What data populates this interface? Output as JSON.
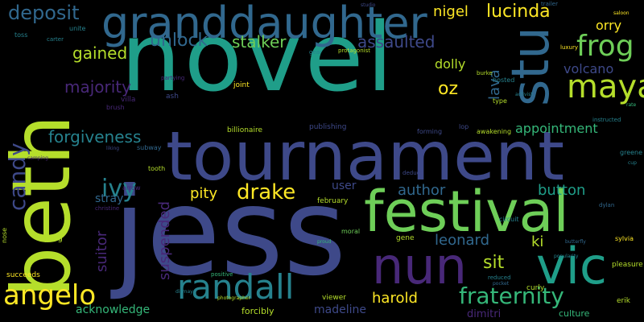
{
  "palette": {
    "yellow": "#fde725",
    "lime": "#b5de2b",
    "green": "#6ece58",
    "teal_green": "#35b779",
    "teal": "#1f9e89",
    "cyan": "#26828e",
    "blue": "#31688e",
    "indigo": "#3e4989",
    "purple": "#482878",
    "deep_purple": "#440154"
  },
  "words": [
    {
      "text": "novel",
      "color": "#1f9e89",
      "vertical": false
    },
    {
      "text": "jess",
      "color": "#3e4989",
      "vertical": false
    },
    {
      "text": "beth",
      "color": "#b5de2b",
      "vertical": true
    },
    {
      "text": "tournament",
      "color": "#3e4989",
      "vertical": false
    },
    {
      "text": "granddaughter",
      "color": "#31688e",
      "vertical": false
    },
    {
      "text": "festival",
      "color": "#6ece58",
      "vertical": false
    },
    {
      "text": "stu",
      "color": "#31688e",
      "vertical": true
    },
    {
      "text": "nun",
      "color": "#482878",
      "vertical": false
    },
    {
      "text": "vic",
      "color": "#1f9e89",
      "vertical": false
    },
    {
      "text": "randall",
      "color": "#26828e",
      "vertical": false
    },
    {
      "text": "angelo",
      "color": "#fde725",
      "vertical": false
    },
    {
      "text": "maya",
      "color": "#b5de2b",
      "vertical": false
    },
    {
      "text": "frog",
      "color": "#6ece58",
      "vertical": false
    },
    {
      "text": "fraternity",
      "color": "#35b779",
      "vertical": false
    },
    {
      "text": "lucinda",
      "color": "#fde725",
      "vertical": false
    },
    {
      "text": "deposit",
      "color": "#31688e",
      "vertical": false
    },
    {
      "text": "candy",
      "color": "#3e4989",
      "vertical": true
    },
    {
      "text": "ivy",
      "color": "#26828e",
      "vertical": false
    },
    {
      "text": "drake",
      "color": "#fde725",
      "vertical": false
    },
    {
      "text": "forgiveness",
      "color": "#26828e",
      "vertical": false
    },
    {
      "text": "unlock",
      "color": "#31688e",
      "vertical": false
    },
    {
      "text": "stalker",
      "color": "#6ece58",
      "vertical": false
    },
    {
      "text": "assaulted",
      "color": "#3e4989",
      "vertical": false
    },
    {
      "text": "gained",
      "color": "#b5de2b",
      "vertical": false
    },
    {
      "text": "majority",
      "color": "#482878",
      "vertical": false
    },
    {
      "text": "volcano",
      "color": "#3e4989",
      "vertical": false
    },
    {
      "text": "nigel",
      "color": "#fde725",
      "vertical": false
    },
    {
      "text": "orry",
      "color": "#fde725",
      "vertical": false
    },
    {
      "text": "dolly",
      "color": "#b5de2b",
      "vertical": false
    },
    {
      "text": "oz",
      "color": "#fde725",
      "vertical": false
    },
    {
      "text": "lava",
      "color": "#31688e",
      "vertical": true
    },
    {
      "text": "appointment",
      "color": "#35b779",
      "vertical": false
    },
    {
      "text": "author",
      "color": "#31688e",
      "vertical": false
    },
    {
      "text": "button",
      "color": "#1f9e89",
      "vertical": false
    },
    {
      "text": "pity",
      "color": "#fde725",
      "vertical": false
    },
    {
      "text": "suitor",
      "color": "#482878",
      "vertical": true
    },
    {
      "text": "suspended",
      "color": "#482878",
      "vertical": true
    },
    {
      "text": "stray",
      "color": "#31688e",
      "vertical": false
    },
    {
      "text": "leonard",
      "color": "#31688e",
      "vertical": false
    },
    {
      "text": "ki",
      "color": "#b5de2b",
      "vertical": false
    },
    {
      "text": "sit",
      "color": "#b5de2b",
      "vertical": false
    },
    {
      "text": "harold",
      "color": "#fde725",
      "vertical": false
    },
    {
      "text": "user",
      "color": "#3e4989",
      "vertical": false
    },
    {
      "text": "acknowledge",
      "color": "#35b779",
      "vertical": false
    },
    {
      "text": "madeline",
      "color": "#3e4989",
      "vertical": false
    },
    {
      "text": "forcibly",
      "color": "#b5de2b",
      "vertical": false
    },
    {
      "text": "dimitri",
      "color": "#482878",
      "vertical": false
    },
    {
      "text": "culture",
      "color": "#35b779",
      "vertical": false
    },
    {
      "text": "erik",
      "color": "#b5de2b",
      "vertical": false
    },
    {
      "text": "sylvia",
      "color": "#fde725",
      "vertical": false
    },
    {
      "text": "pleasure",
      "color": "#b5de2b",
      "vertical": false
    },
    {
      "text": "curly",
      "color": "#b5de2b",
      "vertical": false
    },
    {
      "text": "reduced",
      "color": "#26828e",
      "vertical": false
    },
    {
      "text": "viewer",
      "color": "#b5de2b",
      "vertical": false
    },
    {
      "text": "positive",
      "color": "#35b779",
      "vertical": false
    },
    {
      "text": "succeeds",
      "color": "#fde725",
      "vertical": false
    },
    {
      "text": "jung",
      "color": "#b5de2b",
      "vertical": false
    },
    {
      "text": "february",
      "color": "#b5de2b",
      "vertical": false
    },
    {
      "text": "gene",
      "color": "#b5de2b",
      "vertical": false
    },
    {
      "text": "moral",
      "color": "#6ece58",
      "vertical": false
    },
    {
      "text": "circuit",
      "color": "#26828e",
      "vertical": false
    },
    {
      "text": "billionaire",
      "color": "#b5de2b",
      "vertical": false
    },
    {
      "text": "publishing",
      "color": "#3e4989",
      "vertical": false
    },
    {
      "text": "forming",
      "color": "#3e4989",
      "vertical": false
    },
    {
      "text": "awakening",
      "color": "#b5de2b",
      "vertical": false
    },
    {
      "text": "instructed",
      "color": "#26828e",
      "vertical": false
    },
    {
      "text": "greene",
      "color": "#26828e",
      "vertical": false
    },
    {
      "text": "subway",
      "color": "#31688e",
      "vertical": false
    },
    {
      "text": "tooth",
      "color": "#b5de2b",
      "vertical": false
    },
    {
      "text": "arrow",
      "color": "#482878",
      "vertical": false
    },
    {
      "text": "hosted",
      "color": "#26828e",
      "vertical": false
    },
    {
      "text": "type",
      "color": "#b5de2b",
      "vertical": false
    },
    {
      "text": "burke",
      "color": "#b5de2b",
      "vertical": false
    },
    {
      "text": "joint",
      "color": "#fde725",
      "vertical": false
    },
    {
      "text": "villa",
      "color": "#482878",
      "vertical": false
    },
    {
      "text": "ash",
      "color": "#3e4989",
      "vertical": false
    },
    {
      "text": "brush",
      "color": "#482878",
      "vertical": false
    },
    {
      "text": "toss",
      "color": "#26828e",
      "vertical": false
    },
    {
      "text": "unite",
      "color": "#26828e",
      "vertical": false
    },
    {
      "text": "carter",
      "color": "#26828e",
      "vertical": false
    },
    {
      "text": "partying",
      "color": "#482878",
      "vertical": false
    },
    {
      "text": "studio",
      "color": "#3e4989",
      "vertical": false
    },
    {
      "text": "gear",
      "color": "#26828e",
      "vertical": false
    },
    {
      "text": "protagonist",
      "color": "#b5de2b",
      "vertical": false
    },
    {
      "text": "trailer",
      "color": "#31688e",
      "vertical": false
    },
    {
      "text": "activist",
      "color": "#26828e",
      "vertical": false
    },
    {
      "text": "rate",
      "color": "#35b779",
      "vertical": false
    },
    {
      "text": "nose",
      "color": "#b5de2b",
      "vertical": true
    },
    {
      "text": "deduce",
      "color": "#3e4989",
      "vertical": false
    },
    {
      "text": "christine",
      "color": "#482878",
      "vertical": false
    },
    {
      "text": "camping",
      "color": "#482878",
      "vertical": false
    },
    {
      "text": "luxury",
      "color": "#fde725",
      "vertical": false
    },
    {
      "text": "photographer",
      "color": "#b5de2b",
      "vertical": false
    },
    {
      "text": "popularity",
      "color": "#26828e",
      "vertical": false
    },
    {
      "text": "dylan",
      "color": "#31688e",
      "vertical": false
    },
    {
      "text": "butterfly",
      "color": "#31688e",
      "vertical": false
    },
    {
      "text": "dismay",
      "color": "#26828e",
      "vertical": false
    },
    {
      "text": "proud",
      "color": "#35b779",
      "vertical": false
    },
    {
      "text": "pocket",
      "color": "#31688e",
      "vertical": false
    },
    {
      "text": "liking",
      "color": "#3e4989",
      "vertical": false
    },
    {
      "text": "saloon",
      "color": "#fde725",
      "vertical": false
    },
    {
      "text": "cup",
      "color": "#26828e",
      "vertical": false
    },
    {
      "text": "lop",
      "color": "#3e4989",
      "vertical": false
    }
  ]
}
